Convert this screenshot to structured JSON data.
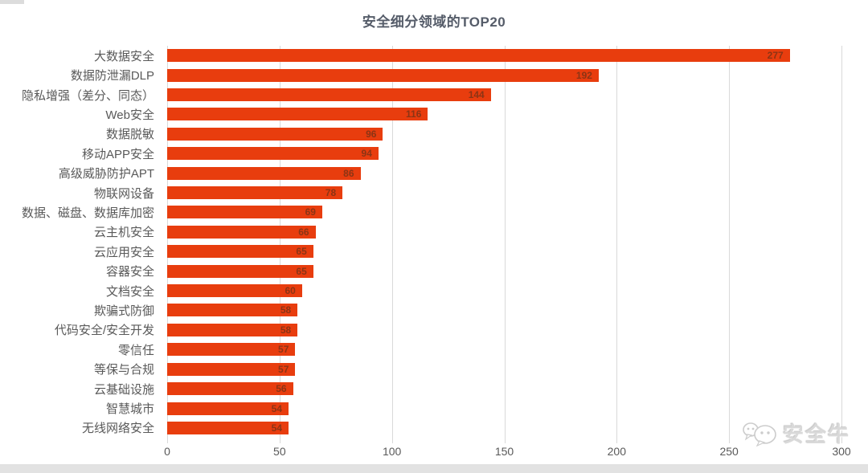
{
  "title": "安全细分领域的TOP20",
  "colors": {
    "bar": "#e83d0e",
    "value_label": "#8c3415",
    "title_text": "#555c69",
    "axis_text": "#595959",
    "gridline": "#d9d9d9",
    "watermark": "#d9d9d9",
    "bottom_strip": "#e2e2e2"
  },
  "watermark": {
    "brand": "安全牛",
    "icon": "wechat-chat-bubbles-icon"
  },
  "chart_data": {
    "type": "bar",
    "orientation": "horizontal",
    "title": "安全细分领域的TOP20",
    "categories": [
      "大数据安全",
      "数据防泄漏DLP",
      "隐私增强（差分、同态）",
      "Web安全",
      "数据脱敏",
      "移动APP安全",
      "高级威胁防护APT",
      "物联网设备",
      "数据、磁盘、数据库加密",
      "云主机安全",
      "云应用安全",
      "容器安全",
      "文档安全",
      "欺骗式防御",
      "代码安全/安全开发",
      "零信任",
      "等保与合规",
      "云基础设施",
      "智慧城市",
      "无线网络安全"
    ],
    "values": [
      277,
      192,
      144,
      116,
      96,
      94,
      86,
      78,
      69,
      66,
      65,
      65,
      60,
      58,
      58,
      57,
      57,
      56,
      54,
      54
    ],
    "xlabel": "",
    "ylabel": "",
    "xlim": [
      0,
      300
    ],
    "x_ticks": [
      0,
      50,
      100,
      150,
      200,
      250,
      300
    ],
    "grid": true,
    "legend": false,
    "value_label_position": "inside-end"
  }
}
